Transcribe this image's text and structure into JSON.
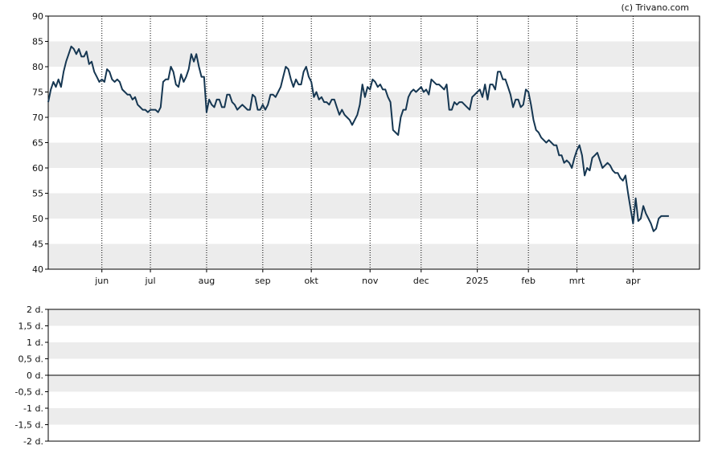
{
  "copyright": "(c) Trivano.com",
  "colors": {
    "line": "#163752",
    "band": "#ececec",
    "grid": "#000000",
    "axis": "#000000"
  },
  "chart_data": [
    {
      "type": "line",
      "ylim": [
        40,
        90
      ],
      "yticks": [
        "90",
        "85",
        "80",
        "75",
        "70",
        "65",
        "60",
        "55",
        "50",
        "45",
        "40"
      ],
      "ytick_values": [
        90,
        85,
        80,
        75,
        70,
        65,
        60,
        55,
        50,
        45,
        40
      ],
      "xlim": [
        0,
        255
      ],
      "xticks": [
        {
          "label": "jun",
          "x": 21
        },
        {
          "label": "jul",
          "x": 40
        },
        {
          "label": "aug",
          "x": 62
        },
        {
          "label": "sep",
          "x": 84
        },
        {
          "label": "okt",
          "x": 103
        },
        {
          "label": "nov",
          "x": 126
        },
        {
          "label": "dec",
          "x": 146
        },
        {
          "label": "2025",
          "x": 168
        },
        {
          "label": "feb",
          "x": 188
        },
        {
          "label": "mrt",
          "x": 207
        },
        {
          "label": "apr",
          "x": 229
        }
      ],
      "grid": "dotted vertical lines at month ticks; alternating horizontal bands",
      "series": [
        {
          "values": [
            [
              0,
              73
            ],
            [
              1,
              75.5
            ],
            [
              2,
              77
            ],
            [
              3,
              76
            ],
            [
              4,
              77.5
            ],
            [
              5,
              76
            ],
            [
              6,
              79
            ],
            [
              7,
              81
            ],
            [
              8,
              82.5
            ],
            [
              9,
              84
            ],
            [
              10,
              83.5
            ],
            [
              11,
              82.5
            ],
            [
              12,
              83.5
            ],
            [
              13,
              82
            ],
            [
              14,
              82
            ],
            [
              15,
              83
            ],
            [
              16,
              80.5
            ],
            [
              17,
              81
            ],
            [
              18,
              79
            ],
            [
              19,
              78
            ],
            [
              20,
              77
            ],
            [
              21,
              77.5
            ],
            [
              22,
              77
            ],
            [
              23,
              79.5
            ],
            [
              24,
              79
            ],
            [
              25,
              77.5
            ],
            [
              26,
              77
            ],
            [
              27,
              77.5
            ],
            [
              28,
              77
            ],
            [
              29,
              75.5
            ],
            [
              30,
              75
            ],
            [
              31,
              74.5
            ],
            [
              32,
              74.5
            ],
            [
              33,
              73.5
            ],
            [
              34,
              74
            ],
            [
              35,
              72.5
            ],
            [
              36,
              72
            ],
            [
              37,
              71.5
            ],
            [
              38,
              71.5
            ],
            [
              39,
              71
            ],
            [
              40,
              71.5
            ],
            [
              41,
              71.5
            ],
            [
              42,
              71.5
            ],
            [
              43,
              71
            ],
            [
              44,
              72
            ],
            [
              45,
              77
            ],
            [
              46,
              77.5
            ],
            [
              47,
              77.5
            ],
            [
              48,
              80
            ],
            [
              49,
              79
            ],
            [
              50,
              76.5
            ],
            [
              51,
              76
            ],
            [
              52,
              78.5
            ],
            [
              53,
              77
            ],
            [
              54,
              78
            ],
            [
              55,
              79.5
            ],
            [
              56,
              82.5
            ],
            [
              57,
              81
            ],
            [
              58,
              82.5
            ],
            [
              59,
              80
            ],
            [
              60,
              78
            ],
            [
              61,
              78
            ],
            [
              62,
              71
            ],
            [
              63,
              73.5
            ],
            [
              64,
              72.5
            ],
            [
              65,
              72
            ],
            [
              66,
              73.5
            ],
            [
              67,
              73.5
            ],
            [
              68,
              72
            ],
            [
              69,
              72
            ],
            [
              70,
              74.5
            ],
            [
              71,
              74.5
            ],
            [
              72,
              73
            ],
            [
              73,
              72.5
            ],
            [
              74,
              71.5
            ],
            [
              75,
              72
            ],
            [
              76,
              72.5
            ],
            [
              77,
              72
            ],
            [
              78,
              71.5
            ],
            [
              79,
              71.5
            ],
            [
              80,
              74.5
            ],
            [
              81,
              74
            ],
            [
              82,
              71.5
            ],
            [
              83,
              71.5
            ],
            [
              84,
              72.5
            ],
            [
              85,
              71.5
            ],
            [
              86,
              72.5
            ],
            [
              87,
              74.5
            ],
            [
              88,
              74.5
            ],
            [
              89,
              74
            ],
            [
              90,
              75
            ],
            [
              91,
              76
            ],
            [
              92,
              78
            ],
            [
              93,
              80
            ],
            [
              94,
              79.5
            ],
            [
              95,
              77.5
            ],
            [
              96,
              76
            ],
            [
              97,
              77.5
            ],
            [
              98,
              76.5
            ],
            [
              99,
              76.5
            ],
            [
              100,
              79
            ],
            [
              101,
              80
            ],
            [
              102,
              78
            ],
            [
              103,
              77
            ],
            [
              104,
              74
            ],
            [
              105,
              75
            ],
            [
              106,
              73.5
            ],
            [
              107,
              74
            ],
            [
              108,
              73
            ],
            [
              109,
              73
            ],
            [
              110,
              72.5
            ],
            [
              111,
              73.5
            ],
            [
              112,
              73.5
            ],
            [
              113,
              72
            ],
            [
              114,
              70.5
            ],
            [
              115,
              71.5
            ],
            [
              116,
              70.5
            ],
            [
              117,
              70
            ],
            [
              118,
              69.5
            ],
            [
              119,
              68.5
            ],
            [
              120,
              69.5
            ],
            [
              121,
              70.5
            ],
            [
              122,
              72.5
            ],
            [
              123,
              76.5
            ],
            [
              124,
              74
            ],
            [
              125,
              76
            ],
            [
              126,
              75.5
            ],
            [
              127,
              77.5
            ],
            [
              128,
              77
            ],
            [
              129,
              76
            ],
            [
              130,
              76.5
            ],
            [
              131,
              75.5
            ],
            [
              132,
              75.5
            ],
            [
              133,
              74
            ],
            [
              134,
              73
            ],
            [
              135,
              67.5
            ],
            [
              136,
              67
            ],
            [
              137,
              66.5
            ],
            [
              138,
              70
            ],
            [
              139,
              71.5
            ],
            [
              140,
              71.5
            ],
            [
              141,
              74
            ],
            [
              142,
              75
            ],
            [
              143,
              75.5
            ],
            [
              144,
              75
            ],
            [
              145,
              75.5
            ],
            [
              146,
              76
            ],
            [
              147,
              75
            ],
            [
              148,
              75.5
            ],
            [
              149,
              74.5
            ],
            [
              150,
              77.5
            ],
            [
              151,
              77
            ],
            [
              152,
              76.5
            ],
            [
              153,
              76.5
            ],
            [
              154,
              76
            ],
            [
              155,
              75.5
            ],
            [
              156,
              76.5
            ],
            [
              157,
              71.5
            ],
            [
              158,
              71.5
            ],
            [
              159,
              73
            ],
            [
              160,
              72.5
            ],
            [
              161,
              73
            ],
            [
              162,
              73
            ],
            [
              163,
              72.5
            ],
            [
              164,
              72
            ],
            [
              165,
              71.5
            ],
            [
              166,
              74
            ],
            [
              167,
              74.5
            ],
            [
              168,
              75
            ],
            [
              169,
              75.5
            ],
            [
              170,
              74
            ],
            [
              171,
              76.5
            ],
            [
              172,
              73.5
            ],
            [
              173,
              76.5
            ],
            [
              174,
              76.5
            ],
            [
              175,
              75.5
            ],
            [
              176,
              79
            ],
            [
              177,
              79
            ],
            [
              178,
              77.5
            ],
            [
              179,
              77.5
            ],
            [
              180,
              76
            ],
            [
              181,
              74.5
            ],
            [
              182,
              72
            ],
            [
              183,
              73.5
            ],
            [
              184,
              73.5
            ],
            [
              185,
              72
            ],
            [
              186,
              72.5
            ],
            [
              187,
              75.5
            ],
            [
              188,
              75
            ],
            [
              189,
              72.5
            ],
            [
              190,
              69.5
            ],
            [
              191,
              67.5
            ],
            [
              192,
              67
            ],
            [
              193,
              66
            ],
            [
              194,
              65.5
            ],
            [
              195,
              65
            ],
            [
              196,
              65.5
            ],
            [
              197,
              65
            ],
            [
              198,
              64.5
            ],
            [
              199,
              64.5
            ],
            [
              200,
              62.5
            ],
            [
              201,
              62.5
            ],
            [
              202,
              61
            ],
            [
              203,
              61.5
            ],
            [
              204,
              61
            ],
            [
              205,
              60
            ],
            [
              206,
              62
            ],
            [
              207,
              63.5
            ],
            [
              208,
              64.5
            ],
            [
              209,
              62.5
            ],
            [
              210,
              58.5
            ],
            [
              211,
              60
            ],
            [
              212,
              59.5
            ],
            [
              213,
              62
            ],
            [
              214,
              62.5
            ],
            [
              215,
              63
            ],
            [
              216,
              61.5
            ],
            [
              217,
              60
            ],
            [
              218,
              60.5
            ],
            [
              219,
              61
            ],
            [
              220,
              60.5
            ],
            [
              221,
              59.5
            ],
            [
              222,
              59
            ],
            [
              223,
              59
            ],
            [
              224,
              58
            ],
            [
              225,
              57.5
            ],
            [
              226,
              58.5
            ],
            [
              227,
              55
            ],
            [
              228,
              52
            ],
            [
              229,
              49
            ],
            [
              230,
              54
            ],
            [
              231,
              49.5
            ],
            [
              232,
              50
            ],
            [
              233,
              52.5
            ],
            [
              234,
              51
            ],
            [
              235,
              50
            ],
            [
              236,
              49
            ],
            [
              237,
              47.5
            ],
            [
              238,
              48
            ],
            [
              239,
              50
            ],
            [
              240,
              50.5
            ],
            [
              241,
              50.5
            ],
            [
              242,
              50.5
            ],
            [
              243,
              50.5
            ]
          ]
        }
      ]
    },
    {
      "type": "line",
      "ylim": [
        -2,
        2
      ],
      "yticks": [
        "2 d.",
        "1,5 d.",
        "1 d.",
        "0,5 d.",
        "0 d.",
        "-0,5 d.",
        "-1 d.",
        "-1,5 d.",
        "-2 d."
      ],
      "ytick_values": [
        2,
        1.5,
        1,
        0.5,
        0,
        -0.5,
        -1,
        -1.5,
        -2
      ],
      "zero_line": 0,
      "grid": "alternating horizontal bands",
      "series": []
    }
  ]
}
